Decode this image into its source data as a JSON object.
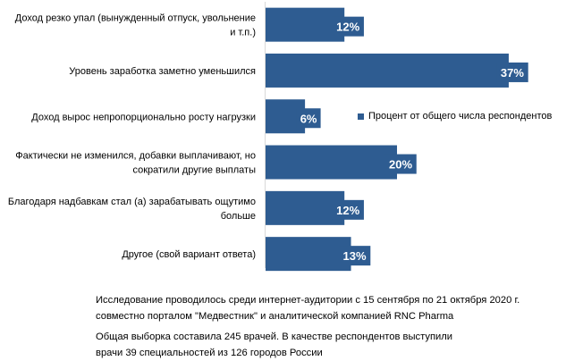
{
  "chart_data": {
    "type": "bar",
    "orientation": "horizontal",
    "categories": [
      [
        "Доход резко упал (вынужденный отпуск, увольнение",
        "и т.п.)"
      ],
      [
        "Уровень заработка заметно уменьшился"
      ],
      [
        "Доход вырос непропорционально росту нагрузки"
      ],
      [
        "Фактически не изменился, добавки выплачивают, но",
        "сократили другие выплаты"
      ],
      [
        "Благодаря надбавкам стал (а) зарабатывать ощутимо",
        "больше"
      ],
      [
        "Другое (свой вариант ответа)"
      ]
    ],
    "values": [
      12,
      37,
      6,
      20,
      12,
      13
    ],
    "value_labels": [
      "12%",
      "37%",
      "6%",
      "20%",
      "12%",
      "13%"
    ],
    "series": [
      {
        "name": "Процент от общего числа респондентов"
      }
    ],
    "xlim": [
      0,
      40
    ],
    "grid": false,
    "legend_position": "right",
    "bar_color": "#2e5c91"
  },
  "notes": {
    "line1": "Исследование проводилось среди интернет-аудитории с 15 сентября по 21 октября 2020 г.",
    "line2": "совместно порталом \"Медвестник\" и аналитической компанией RNC Pharma",
    "line3": "Общая выборка составила 245 врачей. В качестве респондентов выступили",
    "line4": "врачи 39 специальностей из 126 городов России"
  }
}
